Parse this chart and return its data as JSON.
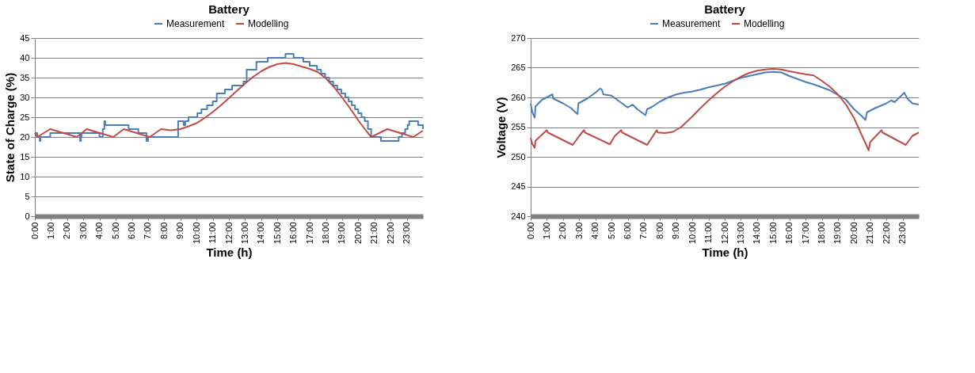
{
  "chart_data": [
    {
      "type": "line",
      "title": "Battery",
      "xlabel": "Time (h)",
      "ylabel": "State of Charge (%)",
      "xlim": [
        0,
        24
      ],
      "xticks": [
        {
          "value": 0,
          "label": "0:00"
        },
        {
          "value": 1,
          "label": "1:00"
        },
        {
          "value": 2,
          "label": "2:00"
        },
        {
          "value": 3,
          "label": "3:00"
        },
        {
          "value": 4,
          "label": "4:00"
        },
        {
          "value": 5,
          "label": "5:00"
        },
        {
          "value": 6,
          "label": "6:00"
        },
        {
          "value": 7,
          "label": "7:00"
        },
        {
          "value": 8,
          "label": "8:00"
        },
        {
          "value": 9,
          "label": "9:00"
        },
        {
          "value": 10,
          "label": "10:00"
        },
        {
          "value": 11,
          "label": "11:00"
        },
        {
          "value": 12,
          "label": "12:00"
        },
        {
          "value": 13,
          "label": "13:00"
        },
        {
          "value": 14,
          "label": "14:00"
        },
        {
          "value": 15,
          "label": "15:00"
        },
        {
          "value": 16,
          "label": "16:00"
        },
        {
          "value": 17,
          "label": "17:00"
        },
        {
          "value": 18,
          "label": "18:00"
        },
        {
          "value": 19,
          "label": "19:00"
        },
        {
          "value": 20,
          "label": "20:00"
        },
        {
          "value": 21,
          "label": "21:00"
        },
        {
          "value": 22,
          "label": "22:00"
        },
        {
          "value": 23,
          "label": "23:00"
        }
      ],
      "ylim": [
        0,
        45
      ],
      "yticks": [
        0,
        5,
        10,
        15,
        20,
        25,
        30,
        35,
        40,
        45
      ],
      "grid": "y",
      "legend": "top",
      "series": [
        {
          "name": "Measurement",
          "color": "#4a7ebb",
          "type": "step",
          "x": [
            0,
            0.15,
            0.3,
            0.35,
            0.95,
            2.8,
            2.85,
            2.9,
            4.0,
            4.2,
            4.3,
            4.35,
            5.8,
            6.4,
            6.9,
            7.0,
            7.05,
            8.86,
            9.2,
            9.3,
            9.5,
            10.05,
            10.3,
            10.65,
            11.0,
            11.25,
            11.75,
            12.2,
            12.9,
            13.1,
            13.7,
            14.4,
            15.5,
            16.0,
            16.6,
            17.0,
            17.45,
            17.7,
            17.95,
            18.2,
            18.45,
            18.7,
            18.95,
            19.2,
            19.4,
            19.6,
            19.8,
            20.0,
            20.2,
            20.4,
            20.6,
            20.8,
            21.4,
            22.5,
            22.7,
            22.9,
            23.05,
            23.15,
            23.7,
            24
          ],
          "values": [
            21,
            20,
            19,
            20,
            21,
            19,
            20,
            21,
            20,
            22,
            24,
            23,
            22,
            21,
            19,
            20,
            20,
            24,
            23,
            24,
            25,
            26,
            27,
            28,
            29,
            31,
            32,
            33,
            34,
            37,
            39,
            40,
            41,
            40,
            39,
            38,
            37,
            36,
            35,
            34,
            33,
            32,
            31,
            30,
            29,
            28,
            27,
            26,
            25,
            24,
            22,
            20,
            19,
            20,
            21,
            22,
            23,
            24,
            23,
            22
          ]
        },
        {
          "name": "Modelling",
          "color": "#be4b48",
          "type": "line",
          "x": [
            0,
            0.15,
            0.95,
            2.6,
            3.2,
            4.85,
            5.5,
            7.1,
            7.8,
            8.4,
            9.0,
            9.5,
            10,
            10.5,
            11,
            11.5,
            12,
            12.5,
            13,
            13.5,
            14,
            14.5,
            15,
            15.5,
            16,
            16.5,
            17,
            17.5,
            18,
            18.5,
            19,
            19.5,
            20,
            20.5,
            20.8,
            21.8,
            23.4,
            24
          ],
          "values": [
            21,
            20,
            22,
            20,
            22,
            20,
            22,
            20,
            22,
            21.7,
            22,
            22.7,
            23.5,
            24.8,
            26.3,
            28,
            29.8,
            31.7,
            33.5,
            35.2,
            36.6,
            37.7,
            38.4,
            38.7,
            38.4,
            37.8,
            37.2,
            36.4,
            34.8,
            32.6,
            30,
            27.2,
            24.2,
            21.5,
            20,
            22,
            20,
            21.6
          ]
        }
      ]
    },
    {
      "type": "line",
      "title": "Battery",
      "xlabel": "Time (h)",
      "ylabel": "Voltage (V)",
      "xlim": [
        0,
        24
      ],
      "xticks": [
        {
          "value": 0,
          "label": "0:00"
        },
        {
          "value": 1,
          "label": "1:00"
        },
        {
          "value": 2,
          "label": "2:00"
        },
        {
          "value": 3,
          "label": "3:00"
        },
        {
          "value": 4,
          "label": "4:00"
        },
        {
          "value": 5,
          "label": "5:00"
        },
        {
          "value": 6,
          "label": "6:00"
        },
        {
          "value": 7,
          "label": "7:00"
        },
        {
          "value": 8,
          "label": "8:00"
        },
        {
          "value": 9,
          "label": "9:00"
        },
        {
          "value": 10,
          "label": "10:00"
        },
        {
          "value": 11,
          "label": "11:00"
        },
        {
          "value": 12,
          "label": "12:00"
        },
        {
          "value": 13,
          "label": "13:00"
        },
        {
          "value": 14,
          "label": "14:00"
        },
        {
          "value": 15,
          "label": "15:00"
        },
        {
          "value": 16,
          "label": "16:00"
        },
        {
          "value": 17,
          "label": "17:00"
        },
        {
          "value": 18,
          "label": "18:00"
        },
        {
          "value": 19,
          "label": "19:00"
        },
        {
          "value": 20,
          "label": "20:00"
        },
        {
          "value": 21,
          "label": "21:00"
        },
        {
          "value": 22,
          "label": "22:00"
        },
        {
          "value": 23,
          "label": "23:00"
        }
      ],
      "ylim": [
        240,
        270
      ],
      "yticks": [
        240,
        245,
        250,
        255,
        260,
        265,
        270
      ],
      "grid": "y",
      "legend": "top",
      "series": [
        {
          "name": "Measurement",
          "color": "#4a7ebb",
          "type": "line",
          "x": [
            0,
            0.1,
            0.25,
            0.3,
            0.7,
            1.2,
            1.35,
            1.4,
            2,
            2.5,
            2.8,
            2.9,
            2.95,
            3.5,
            4,
            4.3,
            4.4,
            4.5,
            5,
            5.5,
            6,
            6.3,
            6.6,
            7,
            7.1,
            7.2,
            7.5,
            8,
            8.5,
            9,
            9.5,
            10,
            10.5,
            11,
            11.5,
            12,
            12.5,
            13,
            13.5,
            14,
            14.5,
            15,
            15.5,
            16,
            16.5,
            17,
            17.5,
            18,
            18.5,
            19,
            19.5,
            20,
            20.5,
            20.7,
            20.8,
            21.3,
            22,
            22.3,
            22.5,
            23,
            23.1,
            23.3,
            23.6,
            24
          ],
          "values": [
            259,
            257.5,
            256.6,
            258.5,
            259.6,
            260.3,
            260.5,
            259.8,
            259,
            258.2,
            257.4,
            257.2,
            259,
            259.8,
            260.8,
            261.5,
            261.3,
            260.5,
            260.3,
            259.3,
            258.3,
            258.8,
            258,
            257.2,
            257,
            258,
            258.4,
            259.3,
            260,
            260.5,
            260.8,
            261,
            261.3,
            261.7,
            262,
            262.3,
            262.8,
            263.3,
            263.6,
            263.9,
            264.2,
            264.3,
            264.2,
            263.6,
            263.1,
            262.6,
            262.2,
            261.7,
            261.2,
            260.4,
            259.6,
            258,
            256.8,
            256.2,
            257.5,
            258.2,
            259,
            259.5,
            259.2,
            260.5,
            260.8,
            259.8,
            259,
            258.8
          ]
        },
        {
          "name": "Modelling",
          "color": "#be4b48",
          "type": "line",
          "x": [
            0,
            0.1,
            0.25,
            0.3,
            1,
            1.05,
            2.6,
            3.0,
            3.3,
            3.35,
            4.9,
            5.2,
            5.6,
            5.65,
            7.2,
            7.8,
            7.85,
            8.3,
            8.8,
            9.3,
            10,
            10.5,
            11,
            11.5,
            12,
            12.5,
            13,
            13.5,
            14,
            14.5,
            15,
            15.5,
            16,
            17,
            17.5,
            18,
            18.5,
            19,
            19.5,
            20,
            20.5,
            20.9,
            21,
            21.7,
            21.75,
            23.2,
            23.6,
            24
          ],
          "values": [
            253.2,
            252.2,
            251.5,
            252.7,
            254.5,
            254.1,
            252,
            253.5,
            254.5,
            254.1,
            252.1,
            253.5,
            254.5,
            254.1,
            252,
            254.5,
            254.1,
            254,
            254.2,
            255,
            256.8,
            258.2,
            259.5,
            260.7,
            261.8,
            262.7,
            263.5,
            264.1,
            264.5,
            264.7,
            264.8,
            264.7,
            264.4,
            263.9,
            263.7,
            262.8,
            261.8,
            260.5,
            258.8,
            256.5,
            253.5,
            251.1,
            252.5,
            254.5,
            254.1,
            252,
            253.5,
            254.1
          ]
        }
      ]
    }
  ]
}
